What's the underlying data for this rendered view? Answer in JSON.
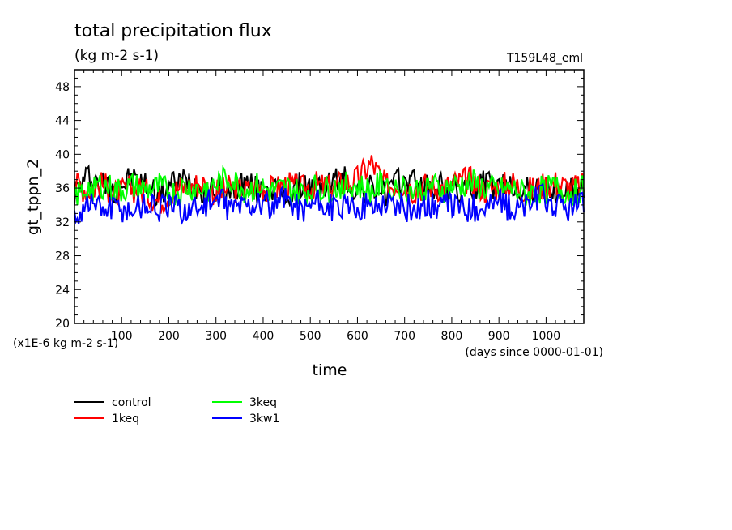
{
  "chart_data": {
    "type": "line",
    "title": "total precipitation flux",
    "units": "(kg m-2 s-1)",
    "run_label": "T159L48_eml",
    "ylabel": "gt_tppn_2",
    "xlabel": "time",
    "scale_note": "(x1E-6 kg m-2 s-1)",
    "x_note": "(days since 0000-01-01)",
    "xlim": [
      0,
      1080
    ],
    "ylim": [
      20,
      50
    ],
    "x_ticks": [
      100,
      200,
      300,
      400,
      500,
      600,
      700,
      800,
      900,
      1000
    ],
    "x_tick_labels": [
      "100",
      "200",
      "300",
      "400",
      "500",
      "600",
      "700",
      "800",
      "900",
      "1000"
    ],
    "y_ticks": [
      20,
      24,
      28,
      32,
      36,
      40,
      44,
      48
    ],
    "y_tick_labels": [
      "20",
      "24",
      "28",
      "32",
      "36",
      "40",
      "44",
      "48"
    ],
    "legend_position": "below-left",
    "series": [
      {
        "name": "control",
        "color": "#000000",
        "x": [
          0,
          30,
          60,
          90,
          120,
          150,
          180,
          210,
          240,
          270,
          300,
          330,
          360,
          390,
          420,
          450,
          480,
          510,
          540,
          570,
          600,
          630,
          660,
          690,
          720,
          750,
          780,
          810,
          840,
          870,
          900,
          930,
          960,
          990,
          1020,
          1050,
          1080
        ],
        "values": [
          35.5,
          37.5,
          36.5,
          35.8,
          37.2,
          36.4,
          35.2,
          36.6,
          37.0,
          36.0,
          35.9,
          35.4,
          36.8,
          35.6,
          36.2,
          35.0,
          36.4,
          35.8,
          36.6,
          37.2,
          35.6,
          36.0,
          35.4,
          36.8,
          37.0,
          35.8,
          36.2,
          35.6,
          36.0,
          36.6,
          35.8,
          36.4,
          35.6,
          36.0,
          35.2,
          35.8,
          35.5
        ]
      },
      {
        "name": "1keq",
        "color": "#ff0000",
        "x": [
          0,
          30,
          60,
          90,
          120,
          150,
          180,
          210,
          240,
          270,
          300,
          330,
          360,
          390,
          420,
          450,
          480,
          510,
          540,
          570,
          600,
          630,
          660,
          690,
          720,
          750,
          780,
          810,
          840,
          870,
          900,
          930,
          960,
          990,
          1020,
          1050,
          1080
        ],
        "values": [
          36.5,
          35.8,
          36.4,
          35.2,
          36.0,
          35.6,
          34.4,
          35.8,
          36.2,
          36.6,
          35.4,
          36.0,
          35.6,
          36.2,
          35.8,
          36.4,
          35.8,
          36.4,
          36.0,
          36.6,
          37.0,
          39.0,
          36.2,
          36.6,
          35.8,
          36.4,
          36.0,
          36.6,
          37.0,
          35.8,
          36.2,
          36.6,
          35.6,
          36.2,
          36.6,
          36.0,
          36.2
        ]
      },
      {
        "name": "3keq",
        "color": "#00ff00",
        "x": [
          0,
          30,
          60,
          90,
          120,
          150,
          180,
          210,
          240,
          270,
          300,
          330,
          360,
          390,
          420,
          450,
          480,
          510,
          540,
          570,
          600,
          630,
          660,
          690,
          720,
          750,
          780,
          810,
          840,
          870,
          900,
          930,
          960,
          990,
          1020,
          1050,
          1080
        ],
        "values": [
          35.0,
          36.0,
          36.4,
          35.6,
          36.2,
          35.8,
          36.0,
          35.4,
          36.2,
          35.8,
          36.4,
          37.2,
          35.8,
          36.2,
          35.6,
          36.0,
          35.4,
          36.0,
          35.8,
          36.4,
          36.2,
          35.6,
          36.8,
          36.0,
          35.6,
          36.4,
          35.8,
          36.2,
          36.6,
          36.0,
          35.6,
          35.8,
          35.2,
          35.8,
          36.0,
          35.4,
          36.0
        ]
      },
      {
        "name": "3kw1",
        "color": "#0000ff",
        "x": [
          0,
          30,
          60,
          90,
          120,
          150,
          180,
          210,
          240,
          270,
          300,
          330,
          360,
          390,
          420,
          450,
          480,
          510,
          540,
          570,
          600,
          630,
          660,
          690,
          720,
          750,
          780,
          810,
          840,
          870,
          900,
          930,
          960,
          990,
          1020,
          1050,
          1080
        ],
        "values": [
          32.5,
          34.5,
          33.5,
          33.8,
          33.4,
          34.2,
          33.6,
          33.8,
          33.4,
          34.0,
          34.6,
          33.8,
          34.0,
          34.4,
          33.6,
          34.8,
          33.6,
          34.2,
          33.8,
          33.4,
          34.0,
          33.6,
          34.4,
          33.8,
          33.4,
          34.2,
          33.8,
          34.0,
          33.6,
          33.8,
          34.4,
          33.4,
          34.0,
          35.0,
          33.8,
          33.6,
          34.0
        ]
      }
    ]
  }
}
